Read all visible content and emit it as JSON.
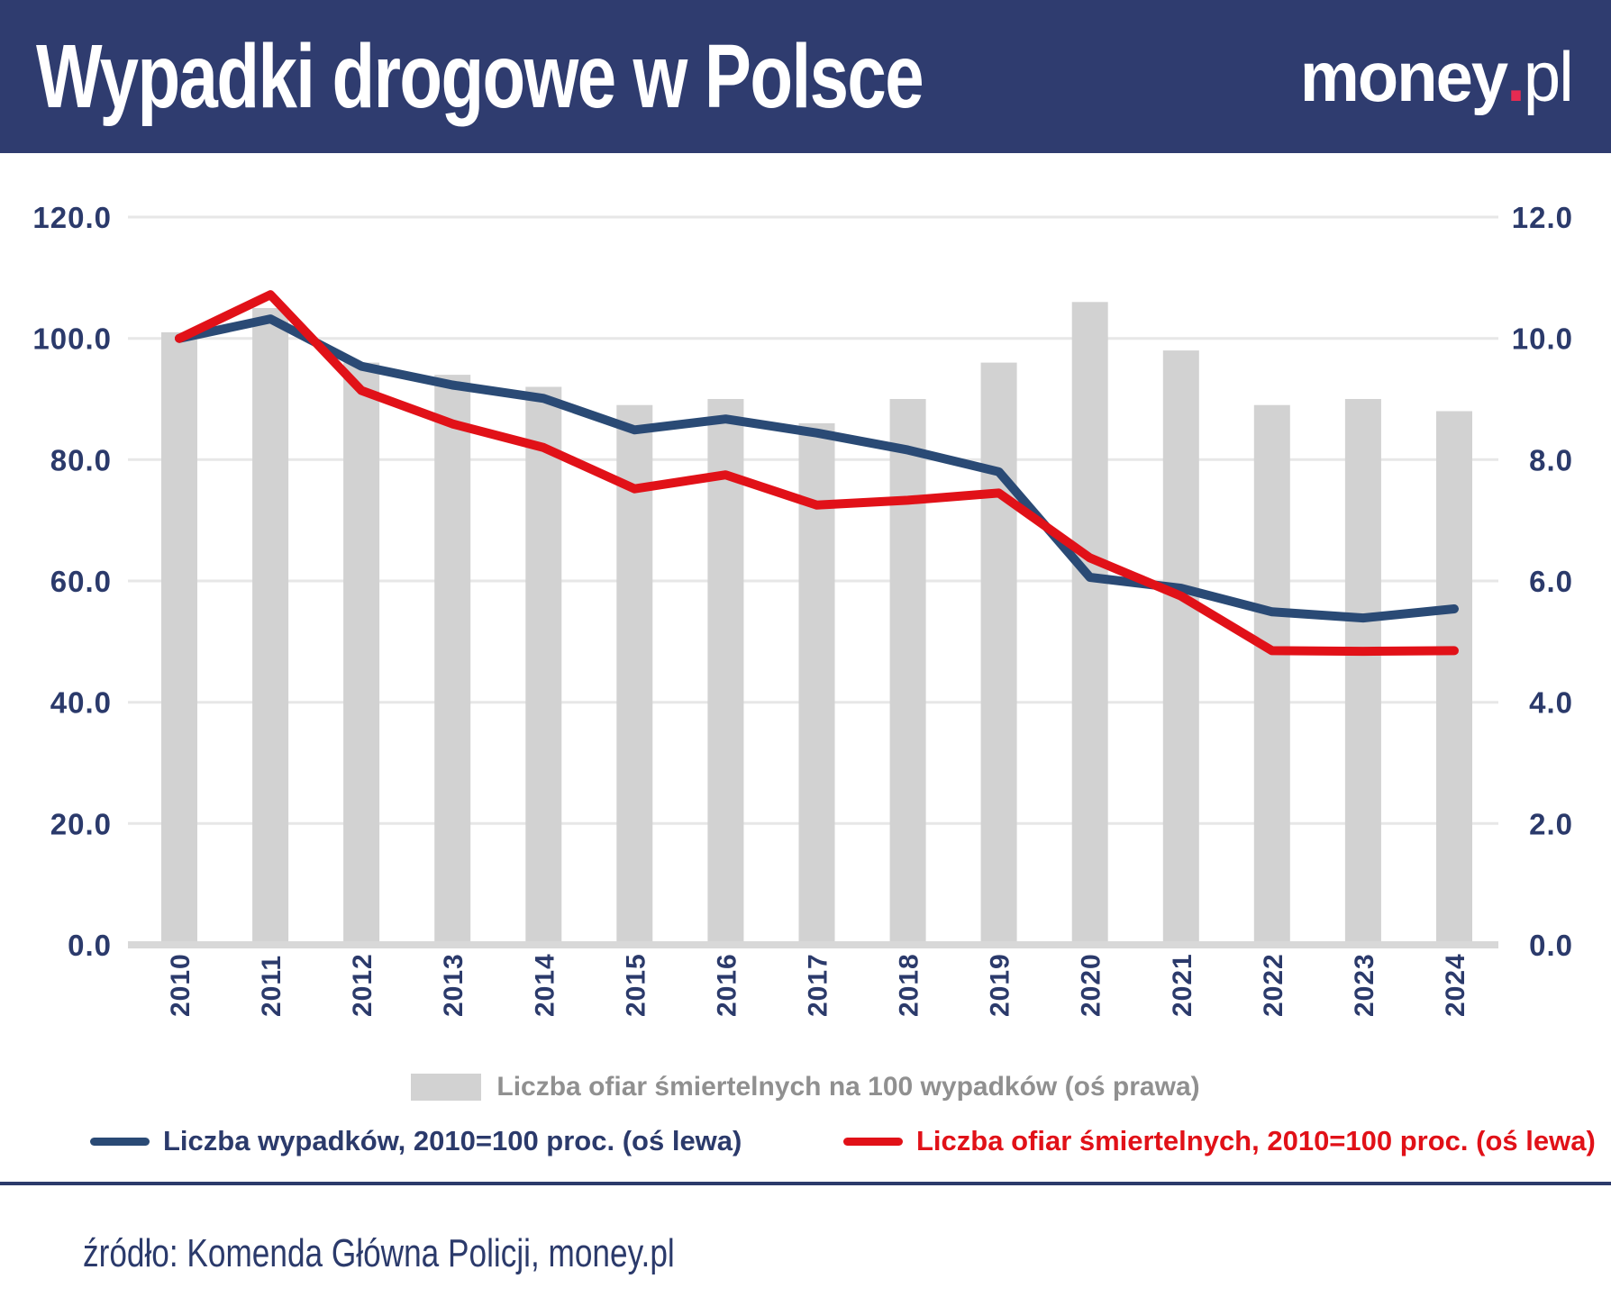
{
  "header": {
    "title": "Wypadki drogowe w Polsce",
    "logo": {
      "money": "money",
      "dot": ".",
      "pl": "pl"
    }
  },
  "legend": {
    "bar": "Liczba ofiar śmiertelnych na 100 wypadków (oś prawa)",
    "accidents": "Liczba wypadków, 2010=100 proc. (oś lewa)",
    "fatalities": "Liczba ofiar śmiertelnych, 2010=100 proc. (oś lewa)"
  },
  "source": "źródło: Komenda Główna Policji, money.pl",
  "colors": {
    "header_bg": "#2f3c6f",
    "navy_text": "#2b3a6b",
    "blue_line": "#2a4a75",
    "red_line": "#e11118",
    "bar": "#d2d2d2",
    "grid": "#e7e7e7",
    "baseline": "#d8d8d8",
    "legend_gray": "#909090",
    "logo_dot": "#e62b52"
  },
  "chart_data": {
    "type": "bar+line combo",
    "title": "Wypadki drogowe w Polsce",
    "grid": true,
    "legend_position": "bottom",
    "categories": [
      "2010",
      "2011",
      "2012",
      "2013",
      "2014",
      "2015",
      "2016",
      "2017",
      "2018",
      "2019",
      "2020",
      "2021",
      "2022",
      "2023",
      "2024"
    ],
    "bar_series": {
      "id": "fatalities-per-100-accidents",
      "name": "Liczba ofiar śmiertelnych na 100 wypadków (oś prawa)",
      "axis": "right",
      "values": [
        10.1,
        10.5,
        9.6,
        9.4,
        9.2,
        8.9,
        9.0,
        8.6,
        9.0,
        9.6,
        10.6,
        9.8,
        8.9,
        9.0,
        8.8
      ]
    },
    "line_series": [
      {
        "id": "line-accidents-index",
        "name": "Liczba wypadków, 2010=100 proc. (oś lewa)",
        "axis": "left",
        "color": "#2a4a75",
        "values": [
          100.0,
          103.2,
          95.4,
          92.3,
          90.1,
          84.9,
          86.7,
          84.4,
          81.6,
          78.0,
          60.6,
          58.8,
          54.9,
          53.9,
          55.4
        ]
      },
      {
        "id": "line-fatalities-index",
        "name": "Liczba ofiar śmiertelnych, 2010=100 proc. (oś lewa)",
        "axis": "left",
        "color": "#e11118",
        "values": [
          100.0,
          107.2,
          91.4,
          85.9,
          82.0,
          75.2,
          77.5,
          72.5,
          73.3,
          74.5,
          63.8,
          57.5,
          48.5,
          48.4,
          48.5
        ]
      }
    ],
    "left_axis": {
      "min": 0,
      "max": 120,
      "step": 20,
      "ticks": [
        0,
        20,
        40,
        60,
        80,
        100,
        120
      ],
      "labels": [
        "0.0",
        "20.0",
        "40.0",
        "60.0",
        "80.0",
        "100.0",
        "120.0"
      ]
    },
    "right_axis": {
      "min": 0,
      "max": 12,
      "step": 2,
      "ticks": [
        0,
        2,
        4,
        6,
        8,
        10,
        12
      ],
      "labels": [
        "0.0",
        "2.0",
        "4.0",
        "6.0",
        "8.0",
        "10.0",
        "12.0"
      ]
    }
  }
}
